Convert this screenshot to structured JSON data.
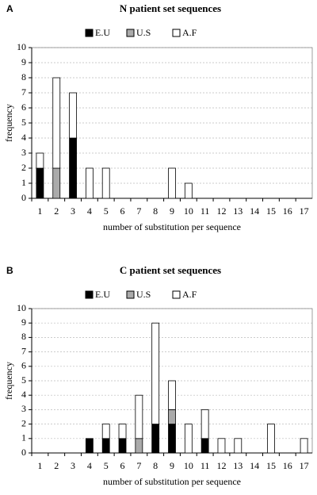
{
  "chart_data": [
    {
      "type": "bar",
      "label": "A",
      "title": "N patient set sequences",
      "x_label": "number of substitution per sequence",
      "y_label": "frequency",
      "categories": [
        "1",
        "2",
        "3",
        "4",
        "5",
        "6",
        "7",
        "8",
        "9",
        "10",
        "11",
        "12",
        "13",
        "14",
        "15",
        "16",
        "17"
      ],
      "series": [
        {
          "name": "E.U",
          "color": "#000000",
          "values": [
            2,
            0,
            4,
            0,
            0,
            0,
            0,
            0,
            0,
            0,
            0,
            0,
            0,
            0,
            0,
            0,
            0
          ]
        },
        {
          "name": "U.S",
          "color": "#aaaaaa",
          "values": [
            0,
            2,
            0,
            0,
            0,
            0,
            0,
            0,
            0,
            0,
            0,
            0,
            0,
            0,
            0,
            0,
            0
          ]
        },
        {
          "name": "A.F",
          "color": "#ffffff",
          "values": [
            1,
            6,
            3,
            2,
            2,
            0,
            0,
            0,
            2,
            1,
            0,
            0,
            0,
            0,
            0,
            0,
            0
          ]
        }
      ],
      "stacked": true,
      "ylim": [
        0,
        10
      ],
      "yticks": [
        0,
        1,
        2,
        3,
        4,
        5,
        6,
        7,
        8,
        9,
        10
      ],
      "grid": true
    },
    {
      "type": "bar",
      "label": "B",
      "title": "C patient set sequences",
      "x_label": "number of substitution per sequence",
      "y_label": "frequency",
      "categories": [
        "1",
        "2",
        "3",
        "4",
        "5",
        "6",
        "7",
        "8",
        "9",
        "10",
        "11",
        "12",
        "13",
        "14",
        "15",
        "16",
        "17"
      ],
      "series": [
        {
          "name": "E.U",
          "color": "#000000",
          "values": [
            0,
            0,
            0,
            1,
            1,
            1,
            0,
            2,
            2,
            0,
            1,
            0,
            0,
            0,
            0,
            0,
            0
          ]
        },
        {
          "name": "U.S",
          "color": "#aaaaaa",
          "values": [
            0,
            0,
            0,
            0,
            0,
            0,
            1,
            0,
            1,
            0,
            0,
            0,
            0,
            0,
            0,
            0,
            0
          ]
        },
        {
          "name": "A.F",
          "color": "#ffffff",
          "values": [
            0,
            0,
            0,
            0,
            1,
            1,
            3,
            7,
            2,
            2,
            2,
            1,
            1,
            0,
            2,
            0,
            1
          ]
        }
      ],
      "stacked": true,
      "ylim": [
        0,
        10
      ],
      "yticks": [
        0,
        1,
        2,
        3,
        4,
        5,
        6,
        7,
        8,
        9,
        10
      ],
      "grid": true
    }
  ]
}
